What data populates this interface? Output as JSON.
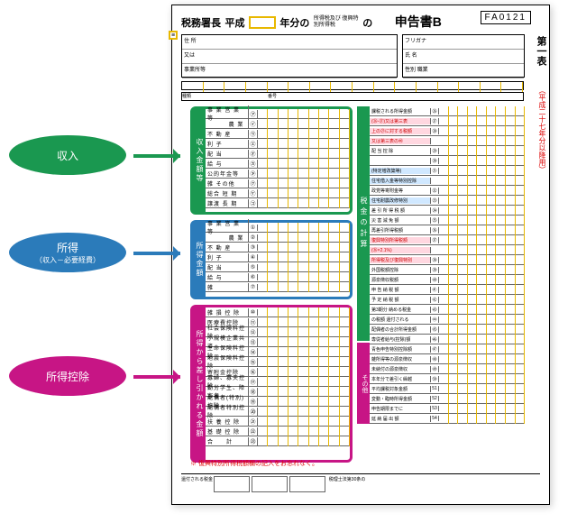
{
  "header": {
    "office": "税務署長",
    "heisei": "平成",
    "year_of": "年分の",
    "tax_type": "所得税及び\n復興特別所得税",
    "no": "の",
    "title": "申告書B",
    "code": "FA0121",
    "tab": "第一表",
    "tab_sub": "（平成二十七年分以降用）",
    "equals": "≡"
  },
  "addr": {
    "r1": "住 所",
    "r2": "又は",
    "r3": "事業所等"
  },
  "name": {
    "r1": "フリガナ",
    "r2": "氏 名",
    "r3": "性別 職業"
  },
  "callouts": {
    "income": {
      "label": "収入"
    },
    "shotoku": {
      "label": "所得",
      "sub": "（収入－必要経費）"
    },
    "deduction": {
      "label": "所得控除"
    }
  },
  "section1": {
    "strip": "収入金額等",
    "rows": [
      {
        "l": "事 業 営 業 等",
        "c": "㋐"
      },
      {
        "l": "　　　 農 業",
        "c": "㋑"
      },
      {
        "l": "不 動 産",
        "c": "㋒"
      },
      {
        "l": "利 子",
        "c": "㋓"
      },
      {
        "l": "配 当",
        "c": "㋔"
      },
      {
        "l": "給 与",
        "c": "㋕"
      },
      {
        "l": "公的年金等",
        "c": "㋖"
      },
      {
        "l": "雑 その他",
        "c": "㋗"
      },
      {
        "l": "総合 短 期",
        "c": "㋘"
      },
      {
        "l": "譲渡 長 期",
        "c": "㋙"
      }
    ]
  },
  "section2": {
    "strip": "所得金額",
    "rows": [
      {
        "l": "事 業 営 業 等",
        "c": "①"
      },
      {
        "l": "　　　 農 業",
        "c": "②"
      },
      {
        "l": "不 動 産",
        "c": "③"
      },
      {
        "l": "利 子",
        "c": "④"
      },
      {
        "l": "配 当",
        "c": "⑤"
      },
      {
        "l": "給 与",
        "c": "⑥"
      },
      {
        "l": "雑",
        "c": "⑦"
      }
    ]
  },
  "section3": {
    "strip": "所得から差し引かれる金額",
    "rows": [
      {
        "l": "雑 損 控 除",
        "c": "⑩"
      },
      {
        "l": "医療費控除",
        "c": "⑪"
      },
      {
        "l": "社会保険料控除",
        "c": "⑫"
      },
      {
        "l": "小規模企業共済",
        "c": "⑬"
      },
      {
        "l": "生命保険料控除",
        "c": "⑭"
      },
      {
        "l": "地震保険料控除",
        "c": "⑮"
      },
      {
        "l": "寄附金控除",
        "c": "⑯"
      },
      {
        "l": "寡婦、寡夫控除",
        "c": "⑰"
      },
      {
        "l": "勤労学生、障害者",
        "c": "⑱"
      },
      {
        "l": "配偶者(特別)控除",
        "c": "⑲"
      },
      {
        "l": "配偶者特別控除",
        "c": "⑳"
      },
      {
        "l": "扶 養 控 除",
        "c": "㉑"
      },
      {
        "l": "基 礎 控 除",
        "c": "㉒"
      },
      {
        "l": "合　　計",
        "c": "㉓"
      }
    ]
  },
  "right": {
    "strip1": "税金の計算",
    "strip2": "その他",
    "rows": [
      {
        "l": "課税される所得金額",
        "c": "㉖",
        "hl": 0
      },
      {
        "l": "(㉖-㉗)又は第三表",
        "c": "㉗",
        "hl": 1
      },
      {
        "l": "上の㉗に対する税額",
        "c": "㉘",
        "hl": 1
      },
      {
        "l": "又は第三表の㊵",
        "c": "",
        "hl": 1
      },
      {
        "l": "配 当 控 除",
        "c": "㉙",
        "hl": 0
      },
      {
        "l": "　　　　　　",
        "c": "㉚",
        "hl": 0
      },
      {
        "l": "(特定増改築等)",
        "c": "㉛",
        "hl": 2
      },
      {
        "l": "住宅借入金等特別控除",
        "c": "",
        "hl": 2
      },
      {
        "l": "政党等寄附金等",
        "c": "㉜",
        "hl": 0
      },
      {
        "l": "住宅耐震改修特別",
        "c": "㉝",
        "hl": 2
      },
      {
        "l": "差 引 所 得 税 額",
        "c": "㉞",
        "hl": 0
      },
      {
        "l": "災 害 減 免 額",
        "c": "㉟",
        "hl": 0
      },
      {
        "l": "再差引所得税額",
        "c": "㊱",
        "hl": 0
      },
      {
        "l": "復興特別所得税額",
        "c": "㊲",
        "hl": 1
      },
      {
        "l": "(㊱×2.1%)",
        "c": "",
        "hl": 1
      },
      {
        "l": "所得税及び復興特別",
        "c": "㊳",
        "hl": 1
      },
      {
        "l": "外国税額控除",
        "c": "㊴",
        "hl": 0
      },
      {
        "l": "源泉徴収税額",
        "c": "㊵",
        "hl": 0
      },
      {
        "l": "申 告 納 税 額",
        "c": "㊶",
        "hl": 0
      },
      {
        "l": "予 定 納 税 額",
        "c": "㊷",
        "hl": 0
      },
      {
        "l": "第3期分 納める税金",
        "c": "㊸",
        "hl": 0
      },
      {
        "l": "の税額 還付される",
        "c": "㊹",
        "hl": 0
      },
      {
        "l": "配偶者の合計所得金額",
        "c": "㊺",
        "hl": 0
      },
      {
        "l": "専従者給与(控除)額",
        "c": "㊻",
        "hl": 0
      },
      {
        "l": "青色申告特別控除額",
        "c": "㊼",
        "hl": 0
      },
      {
        "l": "雑所得等の源泉徴収",
        "c": "㊽",
        "hl": 0
      },
      {
        "l": "未納付の源泉徴収",
        "c": "㊾",
        "hl": 0
      },
      {
        "l": "本年分で差引く繰越",
        "c": "㊿",
        "hl": 0
      },
      {
        "l": "平均課税対象金額",
        "c": "51",
        "hl": 0
      },
      {
        "l": "変動・臨時所得金額",
        "c": "52",
        "hl": 0
      },
      {
        "l": "申告期限までに",
        "c": "53",
        "hl": 0
      },
      {
        "l": "延 納 届 出 額",
        "c": "54",
        "hl": 0
      }
    ]
  },
  "note": "※ 復興特別所得税額欄の記入をお忘れなく。",
  "bottom": {
    "l1": "還付される税金",
    "l2": "税理士法第30条の",
    "l3": "署名押印"
  }
}
